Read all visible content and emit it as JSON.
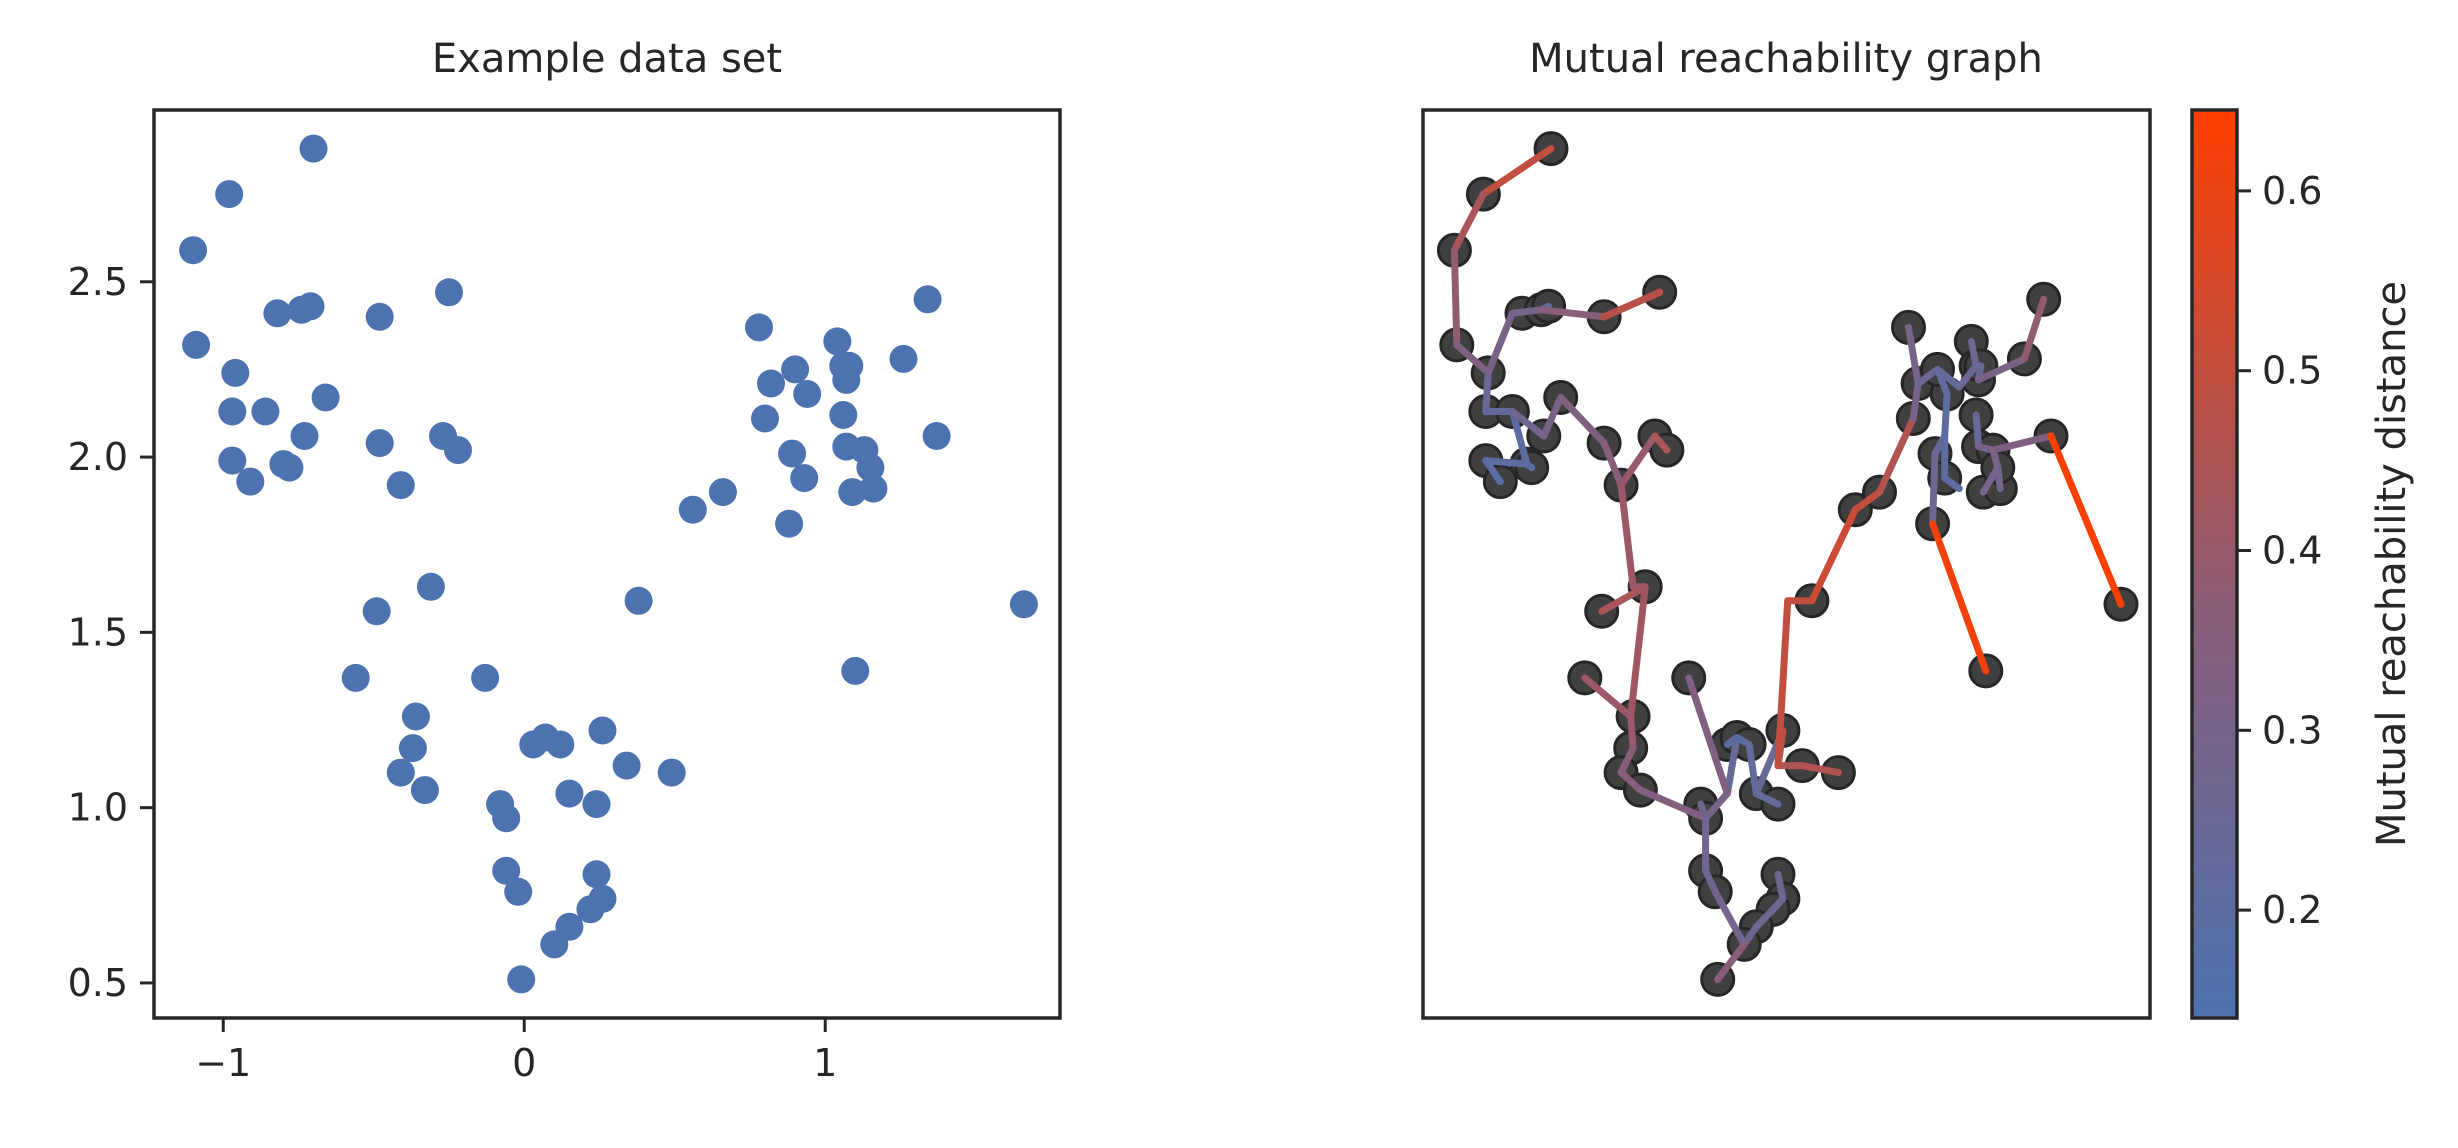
{
  "colors": {
    "point": "#4c72b0",
    "node_fill": "#404040",
    "node_edge": "#262626",
    "edge_low": "#4c72b0",
    "edge_high": "#ff3e00",
    "axis": "#262626"
  },
  "chart_data": [
    {
      "type": "scatter",
      "title": "Example data set",
      "xlim": [
        -1.23,
        1.78
      ],
      "ylim": [
        0.4,
        2.99
      ],
      "xticks": [
        -1,
        0,
        1
      ],
      "xtick_labels": [
        "−1",
        "0",
        "1"
      ],
      "yticks": [
        0.5,
        1.0,
        1.5,
        2.0,
        2.5
      ],
      "ytick_labels": [
        "0.5",
        "1.0",
        "1.5",
        "2.0",
        "2.5"
      ],
      "points": [
        [
          -0.7,
          2.88
        ],
        [
          -0.98,
          2.75
        ],
        [
          -1.1,
          2.59
        ],
        [
          -1.09,
          2.32
        ],
        [
          -0.96,
          2.24
        ],
        [
          -0.97,
          2.13
        ],
        [
          -0.86,
          2.13
        ],
        [
          -0.82,
          2.41
        ],
        [
          -0.74,
          2.42
        ],
        [
          -0.71,
          2.43
        ],
        [
          -0.66,
          2.17
        ],
        [
          -0.48,
          2.4
        ],
        [
          -0.25,
          2.47
        ],
        [
          -0.73,
          2.06
        ],
        [
          -0.8,
          1.98
        ],
        [
          -0.78,
          1.97
        ],
        [
          -0.97,
          1.99
        ],
        [
          -0.91,
          1.93
        ],
        [
          -0.48,
          2.04
        ],
        [
          -0.41,
          1.92
        ],
        [
          -0.27,
          2.06
        ],
        [
          -0.22,
          2.02
        ],
        [
          -0.31,
          1.63
        ],
        [
          -0.49,
          1.56
        ],
        [
          -0.56,
          1.37
        ],
        [
          -0.36,
          1.26
        ],
        [
          -0.37,
          1.17
        ],
        [
          -0.41,
          1.1
        ],
        [
          -0.33,
          1.05
        ],
        [
          -0.13,
          1.37
        ],
        [
          0.03,
          1.18
        ],
        [
          0.07,
          1.2
        ],
        [
          0.12,
          1.18
        ],
        [
          0.26,
          1.22
        ],
        [
          0.15,
          1.04
        ],
        [
          0.24,
          1.01
        ],
        [
          0.34,
          1.12
        ],
        [
          0.49,
          1.1
        ],
        [
          -0.08,
          1.01
        ],
        [
          -0.06,
          0.97
        ],
        [
          -0.06,
          0.82
        ],
        [
          -0.02,
          0.76
        ],
        [
          0.24,
          0.81
        ],
        [
          0.26,
          0.74
        ],
        [
          0.22,
          0.71
        ],
        [
          0.15,
          0.66
        ],
        [
          0.1,
          0.61
        ],
        [
          -0.01,
          0.51
        ],
        [
          0.38,
          1.59
        ],
        [
          0.56,
          1.85
        ],
        [
          0.66,
          1.9
        ],
        [
          0.78,
          2.37
        ],
        [
          0.8,
          2.11
        ],
        [
          0.82,
          2.21
        ],
        [
          0.89,
          2.01
        ],
        [
          0.88,
          1.81
        ],
        [
          0.94,
          2.18
        ],
        [
          0.9,
          2.25
        ],
        [
          0.93,
          1.94
        ],
        [
          1.04,
          2.33
        ],
        [
          1.06,
          2.26
        ],
        [
          1.07,
          2.22
        ],
        [
          1.08,
          2.26
        ],
        [
          1.06,
          2.12
        ],
        [
          1.07,
          2.03
        ],
        [
          1.09,
          1.9
        ],
        [
          1.13,
          2.02
        ],
        [
          1.16,
          1.91
        ],
        [
          1.15,
          1.97
        ],
        [
          1.26,
          2.28
        ],
        [
          1.34,
          2.45
        ],
        [
          1.37,
          2.06
        ],
        [
          1.1,
          1.39
        ],
        [
          1.66,
          1.58
        ]
      ]
    },
    {
      "type": "network",
      "title": "Mutual reachability graph",
      "xlim": [
        -1.23,
        1.78
      ],
      "ylim": [
        0.4,
        2.99
      ],
      "colorbar": {
        "label": "Mutual reachability distance",
        "range": [
          0.14,
          0.645
        ],
        "ticks": [
          0.2,
          0.3,
          0.4,
          0.5,
          0.6
        ],
        "tick_labels": [
          "0.2",
          "0.3",
          "0.4",
          "0.5",
          "0.6"
        ]
      },
      "edges": [
        {
          "from": [
            -0.7,
            2.88
          ],
          "to": [
            -0.98,
            2.75
          ],
          "d": 0.5
        },
        {
          "from": [
            -0.98,
            2.75
          ],
          "to": [
            -1.1,
            2.59
          ],
          "d": 0.44
        },
        {
          "from": [
            -1.1,
            2.59
          ],
          "to": [
            -1.09,
            2.32
          ],
          "d": 0.38
        },
        {
          "from": [
            -1.09,
            2.32
          ],
          "to": [
            -0.96,
            2.24
          ],
          "d": 0.33
        },
        {
          "from": [
            -0.96,
            2.24
          ],
          "to": [
            -0.97,
            2.13
          ],
          "d": 0.25
        },
        {
          "from": [
            -0.96,
            2.24
          ],
          "to": [
            -0.86,
            2.41
          ],
          "d": 0.31
        },
        {
          "from": [
            -0.86,
            2.41
          ],
          "to": [
            -0.74,
            2.42
          ],
          "d": 0.29
        },
        {
          "from": [
            -0.74,
            2.42
          ],
          "to": [
            -0.71,
            2.43
          ],
          "d": 0.24
        },
        {
          "from": [
            -0.74,
            2.42
          ],
          "to": [
            -0.48,
            2.4
          ],
          "d": 0.36
        },
        {
          "from": [
            -0.48,
            2.4
          ],
          "to": [
            -0.25,
            2.47
          ],
          "d": 0.5
        },
        {
          "from": [
            -0.97,
            2.13
          ],
          "to": [
            -0.86,
            2.13
          ],
          "d": 0.22
        },
        {
          "from": [
            -0.86,
            2.13
          ],
          "to": [
            -0.8,
            1.98
          ],
          "d": 0.2
        },
        {
          "from": [
            -0.8,
            1.98
          ],
          "to": [
            -0.78,
            1.97
          ],
          "d": 0.18
        },
        {
          "from": [
            -0.8,
            1.98
          ],
          "to": [
            -0.97,
            1.99
          ],
          "d": 0.21
        },
        {
          "from": [
            -0.97,
            1.99
          ],
          "to": [
            -0.91,
            1.93
          ],
          "d": 0.19
        },
        {
          "from": [
            -0.86,
            2.13
          ],
          "to": [
            -0.73,
            2.06
          ],
          "d": 0.28
        },
        {
          "from": [
            -0.73,
            2.06
          ],
          "to": [
            -0.66,
            2.17
          ],
          "d": 0.31
        },
        {
          "from": [
            -0.66,
            2.17
          ],
          "to": [
            -0.48,
            2.04
          ],
          "d": 0.33
        },
        {
          "from": [
            -0.48,
            2.04
          ],
          "to": [
            -0.41,
            1.92
          ],
          "d": 0.36
        },
        {
          "from": [
            -0.41,
            1.92
          ],
          "to": [
            -0.27,
            2.06
          ],
          "d": 0.4
        },
        {
          "from": [
            -0.27,
            2.06
          ],
          "to": [
            -0.22,
            2.02
          ],
          "d": 0.44
        },
        {
          "from": [
            -0.41,
            1.92
          ],
          "to": [
            -0.36,
            1.63
          ],
          "d": 0.41
        },
        {
          "from": [
            -0.36,
            1.63
          ],
          "to": [
            -0.31,
            1.63
          ],
          "d": 0.4
        },
        {
          "from": [
            -0.31,
            1.63
          ],
          "to": [
            -0.49,
            1.56
          ],
          "d": 0.44
        },
        {
          "from": [
            -0.31,
            1.63
          ],
          "to": [
            -0.37,
            1.26
          ],
          "d": 0.42
        },
        {
          "from": [
            -0.37,
            1.26
          ],
          "to": [
            -0.36,
            1.17
          ],
          "d": 0.4
        },
        {
          "from": [
            -0.36,
            1.17
          ],
          "to": [
            -0.41,
            1.1
          ],
          "d": 0.36
        },
        {
          "from": [
            -0.41,
            1.1
          ],
          "to": [
            -0.33,
            1.05
          ],
          "d": 0.35
        },
        {
          "from": [
            -0.56,
            1.37
          ],
          "to": [
            -0.37,
            1.26
          ],
          "d": 0.41
        },
        {
          "from": [
            -0.33,
            1.05
          ],
          "to": [
            -0.06,
            0.97
          ],
          "d": 0.34
        },
        {
          "from": [
            -0.06,
            0.97
          ],
          "to": [
            -0.08,
            1.01
          ],
          "d": 0.28
        },
        {
          "from": [
            -0.06,
            0.97
          ],
          "to": [
            0.03,
            1.04
          ],
          "d": 0.3
        },
        {
          "from": [
            0.03,
            1.04
          ],
          "to": [
            0.07,
            1.2
          ],
          "d": 0.24
        },
        {
          "from": [
            0.07,
            1.2
          ],
          "to": [
            0.03,
            1.18
          ],
          "d": 0.21
        },
        {
          "from": [
            0.07,
            1.2
          ],
          "to": [
            0.12,
            1.18
          ],
          "d": 0.2
        },
        {
          "from": [
            0.12,
            1.18
          ],
          "to": [
            0.15,
            1.04
          ],
          "d": 0.22
        },
        {
          "from": [
            0.15,
            1.04
          ],
          "to": [
            0.24,
            1.01
          ],
          "d": 0.22
        },
        {
          "from": [
            0.15,
            1.04
          ],
          "to": [
            0.26,
            1.22
          ],
          "d": 0.24
        },
        {
          "from": [
            0.03,
            1.04
          ],
          "to": [
            -0.13,
            1.37
          ],
          "d": 0.33
        },
        {
          "from": [
            0.26,
            1.22
          ],
          "to": [
            0.24,
            1.12
          ],
          "d": 0.4
        },
        {
          "from": [
            0.24,
            1.12
          ],
          "to": [
            0.34,
            1.12
          ],
          "d": 0.45
        },
        {
          "from": [
            0.34,
            1.12
          ],
          "to": [
            0.49,
            1.1
          ],
          "d": 0.46
        },
        {
          "from": [
            0.24,
            1.12
          ],
          "to": [
            0.26,
            1.22
          ],
          "d": 0.48
        },
        {
          "from": [
            -0.06,
            0.97
          ],
          "to": [
            -0.06,
            0.82
          ],
          "d": 0.28
        },
        {
          "from": [
            -0.06,
            0.82
          ],
          "to": [
            -0.02,
            0.76
          ],
          "d": 0.27
        },
        {
          "from": [
            -0.02,
            0.76
          ],
          "to": [
            0.1,
            0.61
          ],
          "d": 0.29
        },
        {
          "from": [
            0.1,
            0.61
          ],
          "to": [
            0.15,
            0.66
          ],
          "d": 0.27
        },
        {
          "from": [
            0.15,
            0.66
          ],
          "to": [
            0.22,
            0.71
          ],
          "d": 0.27
        },
        {
          "from": [
            0.22,
            0.71
          ],
          "to": [
            0.26,
            0.74
          ],
          "d": 0.26
        },
        {
          "from": [
            0.26,
            0.74
          ],
          "to": [
            0.24,
            0.81
          ],
          "d": 0.27
        },
        {
          "from": [
            0.1,
            0.61
          ],
          "to": [
            -0.01,
            0.51
          ],
          "d": 0.36
        },
        {
          "from": [
            0.24,
            1.12
          ],
          "to": [
            0.28,
            1.59
          ],
          "d": 0.5
        },
        {
          "from": [
            0.28,
            1.59
          ],
          "to": [
            0.38,
            1.59
          ],
          "d": 0.5
        },
        {
          "from": [
            0.38,
            1.59
          ],
          "to": [
            0.56,
            1.85
          ],
          "d": 0.52
        },
        {
          "from": [
            0.56,
            1.85
          ],
          "to": [
            0.66,
            1.9
          ],
          "d": 0.5
        },
        {
          "from": [
            0.66,
            1.9
          ],
          "to": [
            0.8,
            2.11
          ],
          "d": 0.46
        },
        {
          "from": [
            0.8,
            2.11
          ],
          "to": [
            0.82,
            2.21
          ],
          "d": 0.3
        },
        {
          "from": [
            0.82,
            2.21
          ],
          "to": [
            0.78,
            2.37
          ],
          "d": 0.3
        },
        {
          "from": [
            0.82,
            2.21
          ],
          "to": [
            0.9,
            2.25
          ],
          "d": 0.26
        },
        {
          "from": [
            0.9,
            2.25
          ],
          "to": [
            0.94,
            2.18
          ],
          "d": 0.22
        },
        {
          "from": [
            0.94,
            2.18
          ],
          "to": [
            0.93,
            2.06
          ],
          "d": 0.2
        },
        {
          "from": [
            0.93,
            2.06
          ],
          "to": [
            0.89,
            2.01
          ],
          "d": 0.24
        },
        {
          "from": [
            0.93,
            2.06
          ],
          "to": [
            0.93,
            1.94
          ],
          "d": 0.2
        },
        {
          "from": [
            0.93,
            1.94
          ],
          "to": [
            0.99,
            1.91
          ],
          "d": 0.2
        },
        {
          "from": [
            0.9,
            2.25
          ],
          "to": [
            0.99,
            2.2
          ],
          "d": 0.22
        },
        {
          "from": [
            0.99,
            2.2
          ],
          "to": [
            1.06,
            2.26
          ],
          "d": 0.26
        },
        {
          "from": [
            1.06,
            2.26
          ],
          "to": [
            1.04,
            2.33
          ],
          "d": 0.26
        },
        {
          "from": [
            1.06,
            2.26
          ],
          "to": [
            1.08,
            2.26
          ],
          "d": 0.25
        },
        {
          "from": [
            1.08,
            2.26
          ],
          "to": [
            1.07,
            2.22
          ],
          "d": 0.24
        },
        {
          "from": [
            1.07,
            2.22
          ],
          "to": [
            1.26,
            2.28
          ],
          "d": 0.31
        },
        {
          "from": [
            1.26,
            2.28
          ],
          "to": [
            1.34,
            2.45
          ],
          "d": 0.38
        },
        {
          "from": [
            1.06,
            2.12
          ],
          "to": [
            1.07,
            2.03
          ],
          "d": 0.24
        },
        {
          "from": [
            1.07,
            2.03
          ],
          "to": [
            1.13,
            2.02
          ],
          "d": 0.29
        },
        {
          "from": [
            1.13,
            2.02
          ],
          "to": [
            1.15,
            1.97
          ],
          "d": 0.3
        },
        {
          "from": [
            1.15,
            1.97
          ],
          "to": [
            1.16,
            1.91
          ],
          "d": 0.28
        },
        {
          "from": [
            1.15,
            1.97
          ],
          "to": [
            1.09,
            1.9
          ],
          "d": 0.29
        },
        {
          "from": [
            1.13,
            2.02
          ],
          "to": [
            1.37,
            2.06
          ],
          "d": 0.33
        },
        {
          "from": [
            0.88,
            1.81
          ],
          "to": [
            0.89,
            2.01
          ],
          "d": 0.26
        },
        {
          "from": [
            0.88,
            1.81
          ],
          "to": [
            1.1,
            1.39
          ],
          "d": 0.62
        },
        {
          "from": [
            1.37,
            2.06
          ],
          "to": [
            1.66,
            1.58
          ],
          "d": 0.64
        },
        {
          "from": [
            -0.25,
            2.47
          ],
          "to": [
            -0.48,
            2.4
          ],
          "d": 0.48
        }
      ]
    }
  ]
}
